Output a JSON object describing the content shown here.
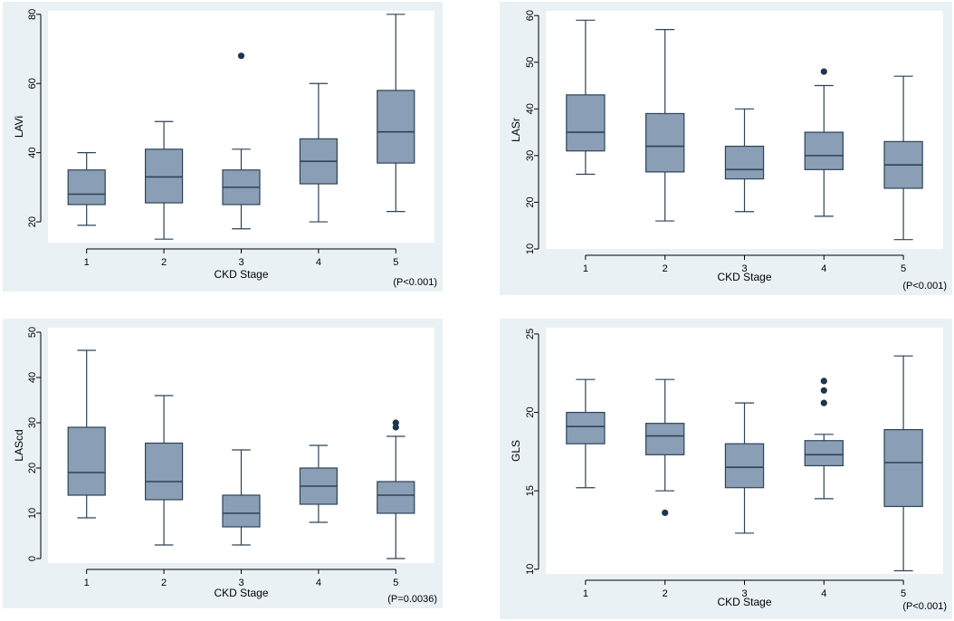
{
  "colors": {
    "panel_bg": "#eaf1f5",
    "plot_bg": "#ffffff",
    "box_fill": "#8a9fb5",
    "line": "#2c4358",
    "outlier": "#1c3550"
  },
  "chart_data": [
    {
      "type": "box",
      "id": "lavi",
      "ylabel": "LAVi",
      "xlabel": "CKD Stage",
      "p_value": "(P<0.001)",
      "categories": [
        "1",
        "2",
        "3",
        "4",
        "5"
      ],
      "ylim": [
        14,
        81
      ],
      "yticks": [
        20,
        40,
        60,
        80
      ],
      "boxes": [
        {
          "min": 19,
          "q1": 25,
          "median": 28,
          "q3": 35,
          "max": 40,
          "outliers": []
        },
        {
          "min": 15,
          "q1": 25.5,
          "median": 33,
          "q3": 41,
          "max": 49,
          "outliers": []
        },
        {
          "min": 18,
          "q1": 25,
          "median": 30,
          "q3": 35,
          "max": 41,
          "outliers": [
            68
          ]
        },
        {
          "min": 20,
          "q1": 31,
          "median": 37.5,
          "q3": 44,
          "max": 60,
          "outliers": []
        },
        {
          "min": 23,
          "q1": 37,
          "median": 46,
          "q3": 58,
          "max": 80,
          "outliers": []
        }
      ]
    },
    {
      "type": "box",
      "id": "lasr",
      "ylabel": "LASr",
      "xlabel": "CKD Stage",
      "p_value": "(P<0.001)",
      "categories": [
        "1",
        "2",
        "3",
        "4",
        "5"
      ],
      "ylim": [
        10,
        61
      ],
      "yticks": [
        10,
        20,
        30,
        40,
        50,
        60
      ],
      "boxes": [
        {
          "min": 26,
          "q1": 31,
          "median": 35,
          "q3": 43,
          "max": 59,
          "outliers": []
        },
        {
          "min": 16,
          "q1": 26.5,
          "median": 32,
          "q3": 39,
          "max": 57,
          "outliers": []
        },
        {
          "min": 18,
          "q1": 25,
          "median": 27,
          "q3": 32,
          "max": 40,
          "outliers": []
        },
        {
          "min": 17,
          "q1": 27,
          "median": 30,
          "q3": 35,
          "max": 45,
          "outliers": [
            48
          ]
        },
        {
          "min": 12,
          "q1": 23,
          "median": 28,
          "q3": 33,
          "max": 47,
          "outliers": []
        }
      ]
    },
    {
      "type": "box",
      "id": "lascd",
      "ylabel": "LAScd",
      "xlabel": "CKD Stage",
      "p_value": "(P=0.0036)",
      "categories": [
        "1",
        "2",
        "3",
        "4",
        "5"
      ],
      "ylim": [
        -1,
        51
      ],
      "yticks": [
        0,
        10,
        20,
        30,
        40,
        50
      ],
      "boxes": [
        {
          "min": 9,
          "q1": 14,
          "median": 19,
          "q3": 29,
          "max": 46,
          "outliers": []
        },
        {
          "min": 3,
          "q1": 13,
          "median": 17,
          "q3": 25.5,
          "max": 36,
          "outliers": []
        },
        {
          "min": 3,
          "q1": 7,
          "median": 10,
          "q3": 14,
          "max": 24,
          "outliers": []
        },
        {
          "min": 8,
          "q1": 12,
          "median": 16,
          "q3": 20,
          "max": 25,
          "outliers": []
        },
        {
          "min": 0,
          "q1": 10,
          "median": 14,
          "q3": 17,
          "max": 27,
          "outliers": [
            29,
            30
          ]
        }
      ]
    },
    {
      "type": "box",
      "id": "gls",
      "ylabel": "GLS",
      "xlabel": "CKD Stage",
      "p_value": "(P<0.001)",
      "categories": [
        "1",
        "2",
        "3",
        "4",
        "5"
      ],
      "ylim": [
        9.7,
        25.4
      ],
      "yticks": [
        10,
        15,
        20,
        25
      ],
      "boxes": [
        {
          "min": 15.2,
          "q1": 18,
          "median": 19.1,
          "q3": 20,
          "max": 22.1,
          "outliers": []
        },
        {
          "min": 15,
          "q1": 17.3,
          "median": 18.5,
          "q3": 19.3,
          "max": 22.1,
          "outliers": [
            13.6
          ]
        },
        {
          "min": 12.3,
          "q1": 15.2,
          "median": 16.5,
          "q3": 18,
          "max": 20.6,
          "outliers": []
        },
        {
          "min": 14.5,
          "q1": 16.6,
          "median": 17.3,
          "q3": 18.2,
          "max": 18.6,
          "outliers": [
            20.6,
            21.4,
            22
          ]
        },
        {
          "min": 9.9,
          "q1": 14,
          "median": 16.8,
          "q3": 18.9,
          "max": 23.6,
          "outliers": []
        }
      ]
    }
  ]
}
